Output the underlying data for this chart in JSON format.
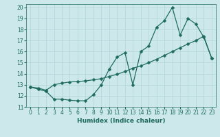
{
  "xlabel": "Humidex (Indice chaleur)",
  "xlim": [
    -0.5,
    23.5
  ],
  "ylim": [
    11,
    20.3
  ],
  "yticks": [
    11,
    12,
    13,
    14,
    15,
    16,
    17,
    18,
    19,
    20
  ],
  "xticks": [
    0,
    1,
    2,
    3,
    4,
    5,
    6,
    7,
    8,
    9,
    10,
    11,
    12,
    13,
    14,
    15,
    16,
    17,
    18,
    19,
    20,
    21,
    22,
    23
  ],
  "bg_color": "#cce8ea",
  "grid_color": "#b0d4d8",
  "line_color": "#1e6b5e",
  "series1_x": [
    0,
    1,
    2,
    3,
    4,
    5,
    6,
    7,
    8,
    9,
    10,
    11,
    12,
    13,
    14,
    15,
    16,
    17,
    18,
    19,
    20,
    21,
    22,
    23
  ],
  "series1_y": [
    12.8,
    12.6,
    12.4,
    11.7,
    11.7,
    11.6,
    11.55,
    11.55,
    12.1,
    13.0,
    14.4,
    15.5,
    15.9,
    13.0,
    16.0,
    16.5,
    18.2,
    18.8,
    20.0,
    17.5,
    19.0,
    18.5,
    17.3,
    15.4
  ],
  "series2_x": [
    0,
    1,
    2,
    3,
    4,
    5,
    6,
    7,
    8,
    9,
    10,
    11,
    12,
    13,
    14,
    15,
    16,
    17,
    18,
    19,
    20,
    21,
    22,
    23
  ],
  "series2_y": [
    12.8,
    12.7,
    12.5,
    13.0,
    13.15,
    13.25,
    13.3,
    13.35,
    13.45,
    13.55,
    13.75,
    13.95,
    14.2,
    14.5,
    14.7,
    15.0,
    15.3,
    15.65,
    16.0,
    16.35,
    16.7,
    17.0,
    17.4,
    15.4
  ],
  "marker": "D",
  "markersize": 2.5,
  "linewidth": 0.9,
  "tick_fontsize": 5.5,
  "xlabel_fontsize": 6.5
}
